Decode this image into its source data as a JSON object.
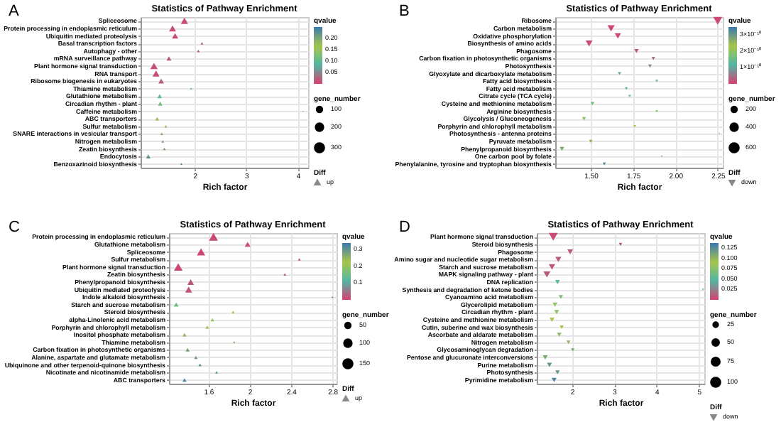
{
  "chart_data": [
    {
      "type": "bubble",
      "title": "Statistics of Pathway Enrichment",
      "xlabel": "Rich factor",
      "annotations": [
        "A",
        "gene_number"
      ],
      "orientation": "horizontal",
      "legend": "right",
      "grid": true,
      "marker": "triangle-up",
      "legend_title": "Diff",
      "clabel": "qvalue",
      "clim": [
        0,
        0.25
      ],
      "cticks": [
        {
          "value": 0.05,
          "label": "0.05"
        },
        {
          "value": 0.1,
          "label": "0.10"
        },
        {
          "value": 0.15,
          "label": "0.15"
        },
        {
          "value": 0.2,
          "label": "0.20"
        }
      ],
      "size_legend": [
        100,
        200,
        300
      ],
      "xlim": [
        0.95,
        4.2
      ],
      "xticks": [
        2,
        3,
        4
      ],
      "categories": [
        "Spliceosome",
        "Protein processing in endoplasmic reticulum",
        "Ubiquitin mediated proteolysis",
        "Basal transcription factors",
        "Autophagy - other",
        "mRNA surveillance pathway",
        "Plant hormone signal transduction",
        "RNA transport",
        "Ribosome biogenesis in eukaryotes",
        "Thiamine metabolism",
        "Glutathione metabolism",
        "Circadian rhythm - plant",
        "Caffeine metabolism",
        "ABC transporters",
        "Sulfur metabolism",
        "SNARE interactions in vesicular transport",
        "Nitrogen metabolism",
        "Zeatin biosynthesis",
        "Endocytosis",
        "Benzoxazinoid biosynthesis"
      ],
      "series": [
        {
          "name": "up",
          "values": [
            1.8,
            1.57,
            1.62,
            2.14,
            2.07,
            1.5,
            1.21,
            1.25,
            1.35,
            1.93,
            1.32,
            1.33,
            4.1,
            1.27,
            1.44,
            1.36,
            1.38,
            1.41,
            1.1,
            1.74
          ],
          "sizes": [
            200,
            180,
            150,
            30,
            30,
            90,
            200,
            180,
            120,
            20,
            80,
            80,
            10,
            60,
            30,
            30,
            30,
            30,
            80,
            20
          ],
          "cvalues": [
            0.01,
            0.01,
            0.01,
            0.02,
            0.02,
            0.02,
            0.01,
            0.01,
            0.02,
            0.1,
            0.1,
            0.12,
            0.15,
            0.15,
            0.18,
            0.2,
            0.2,
            0.2,
            0.22,
            0.22
          ]
        }
      ]
    },
    {
      "type": "bubble",
      "title": "Statistics of Pathway Enrichment",
      "xlabel": "Rich factor",
      "annotations": [
        "B",
        "gene_number"
      ],
      "orientation": "horizontal",
      "legend": "right",
      "grid": true,
      "marker": "triangle-down",
      "legend_title": "Diff",
      "clabel": "qvalue",
      "clim": [
        0,
        3.5e-10
      ],
      "cticks": [
        {
          "value": 1e-10,
          "label": "1×10⁻¹⁰"
        },
        {
          "value": 2e-10,
          "label": "2×10⁻¹⁰"
        },
        {
          "value": 3e-10,
          "label": "3×10⁻¹⁰"
        }
      ],
      "size_legend": [
        200,
        400,
        600
      ],
      "xlim": [
        1.29,
        2.28
      ],
      "xticks": [
        {
          "value": 1.5,
          "label": "1.50"
        },
        {
          "value": 1.75,
          "label": "1.75"
        },
        {
          "value": 2,
          "label": "2.00"
        },
        {
          "value": 2.25,
          "label": "2.25"
        }
      ],
      "categories": [
        "Ribosome",
        "Carbon metabolism",
        "Oxidative phosphorylation",
        "Biosynthesis of amino acids",
        "Phagosome",
        "Carbon fixation in photosynthetic organisms",
        "Photosynthesis",
        "Glyoxylate and dicarboxylate metabolism",
        "Fatty acid biosynthesis",
        "Fatty acid metabolism",
        "Citrate cycle (TCA cycle)",
        "Cysteine and methionine metabolism",
        "Arginine biosynthesis",
        "Glycolysis / Gluconeogenesis",
        "Porphyrin and chlorophyll metabolism",
        "Photosynthesis - antenna proteins",
        "Pyruvate metabolism",
        "Phenylpropanoid biosynthesis",
        "One carbon pool by folate",
        "Phenylalanine, tyrosine and tryptophan biosynthesis"
      ],
      "series": [
        {
          "name": "down",
          "values": [
            2.25,
            1.62,
            1.66,
            1.49,
            1.77,
            1.87,
            1.85,
            1.67,
            1.89,
            1.71,
            1.73,
            1.51,
            1.89,
            1.46,
            1.76,
            2.26,
            1.5,
            1.33,
            1.92,
            1.58
          ],
          "sizes": [
            600,
            400,
            300,
            350,
            150,
            100,
            100,
            80,
            60,
            70,
            60,
            120,
            50,
            120,
            60,
            20,
            100,
            150,
            20,
            80
          ],
          "cvalues": [
            1e-11,
            1e-11,
            1e-11,
            1e-11,
            2e-11,
            5e-11,
            6e-11,
            1e-10,
            1.2e-10,
            1.3e-10,
            1.5e-10,
            1.6e-10,
            1.8e-10,
            2e-10,
            2.2e-10,
            2.4e-10,
            2.6e-10,
            2.8e-10,
            3e-10,
            3.2e-10
          ]
        }
      ]
    },
    {
      "type": "bubble",
      "title": "Statistics of Pathway Enrichment",
      "xlabel": "Rich factor",
      "annotations": [
        "C",
        "gene_number"
      ],
      "orientation": "horizontal",
      "legend": "right",
      "grid": true,
      "marker": "triangle-up",
      "legend_title": "Diff",
      "clabel": "qvalue",
      "clim": [
        0,
        0.34
      ],
      "cticks": [
        0.1,
        0.2,
        0.3
      ],
      "size_legend": [
        50,
        100,
        150
      ],
      "xlim": [
        1.22,
        2.84
      ],
      "xticks": [
        1.6,
        2.0,
        2.4,
        2.8
      ],
      "categories": [
        "Protein processing in endoplasmic reticulum",
        "Glutathione metabolism",
        "Spliceosome",
        "Sulfur metabolism",
        "Plant hormone signal transduction",
        "Zeatin biosynthesis",
        "Phenylpropanoid biosynthesis",
        "Ubiquitin mediated proteolysis",
        "Indole alkaloid biosynthesis",
        "Starch and sucrose metabolism",
        "Steroid biosynthesis",
        "alpha-Linolenic acid metabolism",
        "Porphyrin and chlorophyll metabolism",
        "Inositol phosphate metabolism",
        "Thiamine metabolism",
        "Carbon fixation in photosynthetic organisms",
        "Alanine, aspartate and glutamate metabolism",
        "Ubiquinone and other terpenoid-quinone biosynthesis",
        "Nicotinate and nicotinamide metabolism",
        "ABC transporters"
      ],
      "series": [
        {
          "name": "up",
          "values": [
            1.65,
            1.98,
            1.53,
            2.48,
            1.31,
            2.34,
            1.43,
            1.41,
            2.8,
            1.29,
            1.84,
            1.64,
            1.59,
            1.37,
            1.85,
            1.4,
            1.48,
            1.52,
            1.68,
            1.37
          ],
          "sizes": [
            150,
            60,
            130,
            15,
            140,
            15,
            80,
            90,
            8,
            40,
            15,
            25,
            25,
            30,
            10,
            30,
            25,
            20,
            15,
            30
          ],
          "cvalues": [
            0.01,
            0.01,
            0.01,
            0.02,
            0.01,
            0.03,
            0.02,
            0.02,
            0.05,
            0.15,
            0.2,
            0.2,
            0.22,
            0.25,
            0.26,
            0.28,
            0.28,
            0.3,
            0.3,
            0.32
          ]
        }
      ]
    },
    {
      "type": "bubble",
      "title": "Statistics of Pathway Enrichment",
      "xlabel": "Rich factor",
      "annotations": [
        "D",
        "gene_number"
      ],
      "orientation": "horizontal",
      "legend": "right",
      "grid": true,
      "marker": "triangle-down",
      "legend_title": "Diff",
      "clabel": "qvalue",
      "clim": [
        0,
        0.1375
      ],
      "cticks": [
        {
          "value": 0.025,
          "label": "0.025"
        },
        {
          "value": 0.05,
          "label": "0.050"
        },
        {
          "value": 0.075,
          "label": "0.075"
        },
        {
          "value": 0.1,
          "label": "0.100"
        },
        {
          "value": 0.125,
          "label": "0.125"
        }
      ],
      "size_legend": [
        25,
        50,
        75,
        100
      ],
      "xlim": [
        1.17,
        5.13
      ],
      "xticks": [
        2,
        3,
        4,
        5
      ],
      "categories": [
        "Plant hormone signal transduction",
        "Steroid biosynthesis",
        "Phagosome",
        "Amino sugar and nucleotide sugar metabolism",
        "Starch and sucrose metabolism",
        "MAPK signaling pathway - plant",
        "DNA replication",
        "Synthesis and degradation of ketone bodies",
        "Cyanoamino acid metabolism",
        "Glycerolipid metabolism",
        "Circadian rhythm - plant",
        "Cysteine and methionine metabolism",
        "Cutin, suberine and wax biosynthesis",
        "Ascorbate and aldarate metabolism",
        "Nitrogen metabolism",
        "Glycosaminoglycan degradation",
        "Pentose and glucuronate interconversions",
        "Purine metabolism",
        "Photosynthesis",
        "Pyrimidine metabolism"
      ],
      "series": [
        {
          "name": "down",
          "values": [
            1.56,
            3.15,
            1.96,
            1.68,
            1.53,
            1.41,
            1.66,
            5.1,
            1.74,
            1.6,
            1.64,
            1.53,
            1.76,
            1.7,
            1.92,
            2.02,
            1.37,
            1.47,
            1.66,
            1.58
          ],
          "sizes": [
            100,
            15,
            40,
            45,
            50,
            60,
            30,
            5,
            25,
            30,
            30,
            30,
            20,
            25,
            20,
            15,
            30,
            30,
            25,
            30
          ],
          "cvalues": [
            0.005,
            0.01,
            0.01,
            0.01,
            0.01,
            0.01,
            0.05,
            0.06,
            0.07,
            0.08,
            0.08,
            0.09,
            0.09,
            0.1,
            0.1,
            0.11,
            0.11,
            0.12,
            0.12,
            0.13
          ]
        }
      ]
    }
  ]
}
